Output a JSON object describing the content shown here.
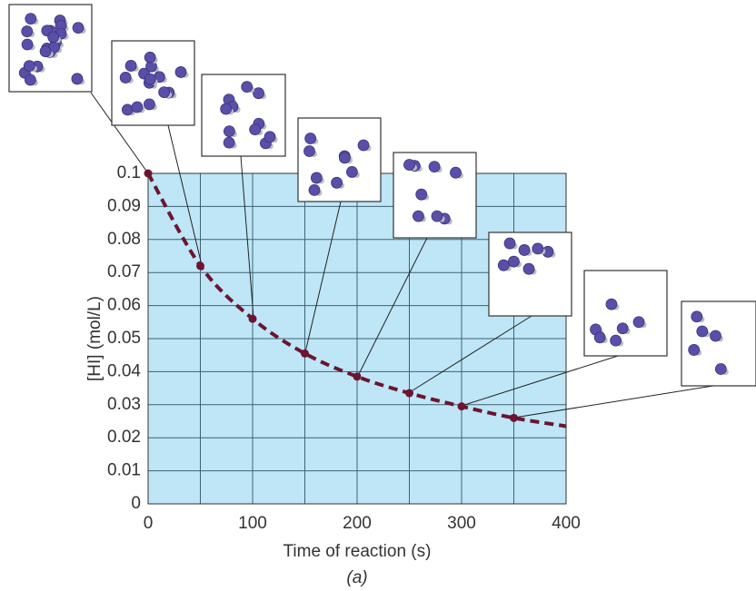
{
  "chart_data": {
    "type": "line",
    "x_label": "Time of reaction (s)",
    "y_label": "[HI] (mol/L)",
    "caption": "(a)",
    "x": [
      0,
      50,
      100,
      150,
      200,
      250,
      300,
      350,
      400
    ],
    "series": [
      {
        "color": "#6b1530",
        "values": [
          0.1,
          0.072,
          0.056,
          0.0455,
          0.0385,
          0.0335,
          0.0295,
          0.026,
          0.0235
        ]
      }
    ],
    "xlim": [
      0,
      400
    ],
    "xticks": [
      0,
      100,
      200,
      300,
      400
    ],
    "ylim": [
      0,
      0.1
    ],
    "yticks": [
      0,
      0.01,
      0.02,
      0.03,
      0.04,
      0.05,
      0.06,
      0.07,
      0.08,
      0.09,
      0.1
    ],
    "grid": true,
    "plot_background": "#bfe6f7"
  }
}
